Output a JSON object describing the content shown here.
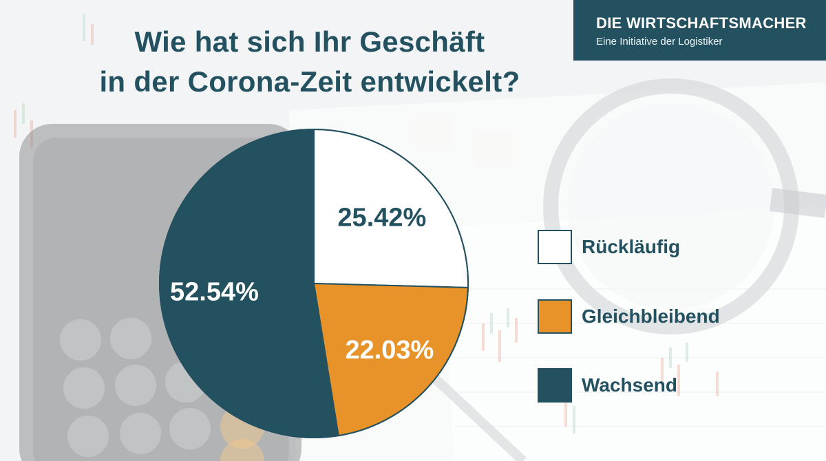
{
  "title": {
    "line1": "Wie hat sich Ihr Geschäft",
    "line2": "in der Corona-Zeit entwickelt?"
  },
  "brand": {
    "name": "DIE WIRTSCHAFTSMACHER",
    "tagline": "Eine Initiative der Logistiker"
  },
  "colors": {
    "primary": "#235160",
    "orange": "#E8932A",
    "white": "#FFFFFF"
  },
  "chart_data": {
    "type": "pie",
    "title": "Wie hat sich Ihr Geschäft in der Corona-Zeit entwickelt?",
    "start": "12 o'clock",
    "direction": "clockwise",
    "slices": [
      {
        "label": "Rückläufig",
        "value": 25.42,
        "display": "25.42%",
        "color": "#FFFFFF",
        "text_color": "#235160"
      },
      {
        "label": "Gleichbleibend",
        "value": 22.03,
        "display": "22.03%",
        "color": "#E8932A",
        "text_color": "#FFFFFF"
      },
      {
        "label": "Wachsend",
        "value": 52.54,
        "display": "52.54%",
        "color": "#235160",
        "text_color": "#FFFFFF"
      }
    ],
    "legend_position": "right"
  }
}
